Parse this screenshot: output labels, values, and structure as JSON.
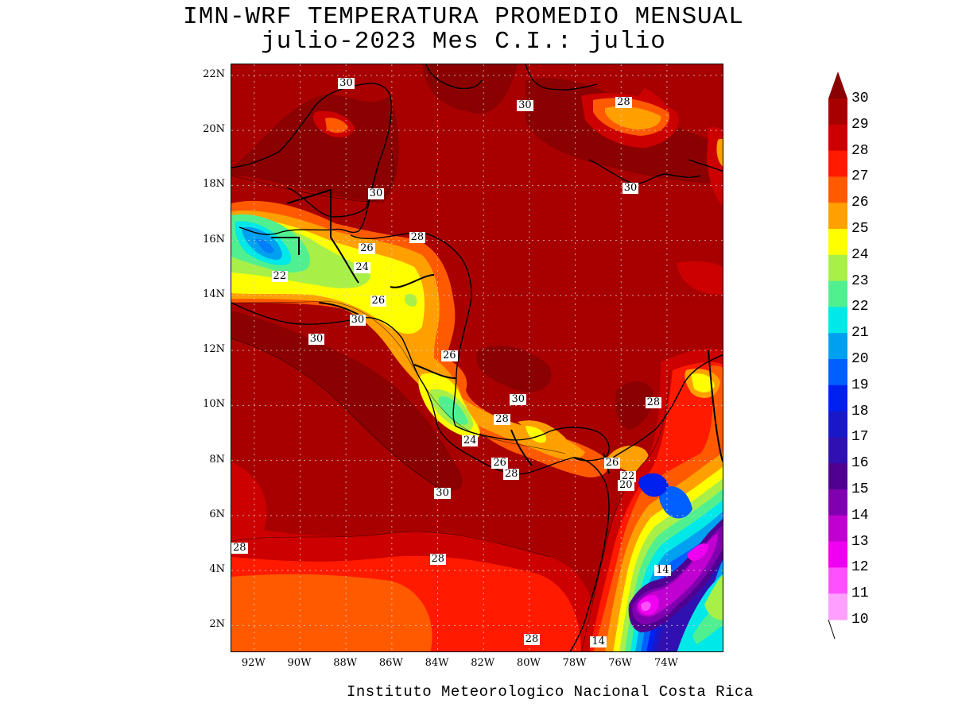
{
  "title": {
    "line1": "IMN-WRF  TEMPERATURA PROMEDIO MENSUAL",
    "line2": "julio-2023 Mes C.I.: julio"
  },
  "footer": "Instituto Meteorologico Nacional Costa Rica",
  "axes": {
    "lon_min": -93,
    "lon_max": -71.5,
    "lat_min": 1,
    "lat_max": 22.4,
    "y_ticks": [
      {
        "lat": 22,
        "label": "22N"
      },
      {
        "lat": 20,
        "label": "20N"
      },
      {
        "lat": 18,
        "label": "18N"
      },
      {
        "lat": 16,
        "label": "16N"
      },
      {
        "lat": 14,
        "label": "14N"
      },
      {
        "lat": 12,
        "label": "12N"
      },
      {
        "lat": 10,
        "label": "10N"
      },
      {
        "lat": 8,
        "label": "8N"
      },
      {
        "lat": 6,
        "label": "6N"
      },
      {
        "lat": 4,
        "label": "4N"
      },
      {
        "lat": 2,
        "label": "2N"
      }
    ],
    "x_ticks": [
      {
        "lon": -92,
        "label": "92W"
      },
      {
        "lon": -90,
        "label": "90W"
      },
      {
        "lon": -88,
        "label": "88W"
      },
      {
        "lon": -86,
        "label": "86W"
      },
      {
        "lon": -84,
        "label": "84W"
      },
      {
        "lon": -82,
        "label": "82W"
      },
      {
        "lon": -80,
        "label": "80W"
      },
      {
        "lon": -78,
        "label": "78W"
      },
      {
        "lon": -76,
        "label": "76W"
      },
      {
        "lon": -74,
        "label": "74W"
      }
    ]
  },
  "colorbar": {
    "levels": [
      "30",
      "29",
      "28",
      "27",
      "26",
      "25",
      "24",
      "23",
      "22",
      "21",
      "20",
      "19",
      "18",
      "17",
      "16",
      "15",
      "14",
      "13",
      "12",
      "11",
      "10"
    ],
    "colors": {
      "above_30": "#8b0000",
      "29-30": "#a80000",
      "28-29": "#cc0000",
      "27-28": "#ff1a00",
      "26-27": "#ff5a00",
      "25-26": "#ffa000",
      "24-25": "#ffff00",
      "23-24": "#a8f048",
      "22-23": "#50f090",
      "21-22": "#00e8e8",
      "20-21": "#00a0f0",
      "19-20": "#0060ff",
      "18-19": "#0020f0",
      "17-18": "#1818c8",
      "16-17": "#3010b0",
      "15-16": "#500090",
      "14-15": "#8000b0",
      "13-14": "#c000d0",
      "12-13": "#f000f0",
      "11-12": "#ff50ff",
      "10-11": "#ffa0ff"
    }
  },
  "contour_labels": [
    {
      "text": "30",
      "lon": -88.0,
      "lat": 21.7
    },
    {
      "text": "30",
      "lon": -80.2,
      "lat": 20.9
    },
    {
      "text": "28",
      "lon": -75.9,
      "lat": 21.0
    },
    {
      "text": "30",
      "lon": -86.7,
      "lat": 17.7
    },
    {
      "text": "30",
      "lon": -75.6,
      "lat": 17.9
    },
    {
      "text": "28",
      "lon": -84.9,
      "lat": 16.1
    },
    {
      "text": "26",
      "lon": -87.1,
      "lat": 15.7
    },
    {
      "text": "24",
      "lon": -87.3,
      "lat": 15.0
    },
    {
      "text": "22",
      "lon": -90.9,
      "lat": 14.7
    },
    {
      "text": "26",
      "lon": -86.6,
      "lat": 13.8
    },
    {
      "text": "30",
      "lon": -87.5,
      "lat": 13.1
    },
    {
      "text": "30",
      "lon": -89.3,
      "lat": 12.4
    },
    {
      "text": "26",
      "lon": -83.5,
      "lat": 11.8
    },
    {
      "text": "30",
      "lon": -80.5,
      "lat": 10.2
    },
    {
      "text": "28",
      "lon": -74.6,
      "lat": 10.1
    },
    {
      "text": "28",
      "lon": -81.2,
      "lat": 9.5
    },
    {
      "text": "24",
      "lon": -82.6,
      "lat": 8.7
    },
    {
      "text": "26",
      "lon": -81.3,
      "lat": 7.9
    },
    {
      "text": "28",
      "lon": -80.8,
      "lat": 7.5
    },
    {
      "text": "26",
      "lon": -76.4,
      "lat": 7.9
    },
    {
      "text": "22",
      "lon": -75.7,
      "lat": 7.4
    },
    {
      "text": "20",
      "lon": -75.8,
      "lat": 7.1
    },
    {
      "text": "30",
      "lon": -83.8,
      "lat": 6.8
    },
    {
      "text": "28",
      "lon": -92.9,
      "lat": 4.8
    },
    {
      "text": "28",
      "lon": -84.0,
      "lat": 4.4
    },
    {
      "text": "14",
      "lon": -74.2,
      "lat": 4.0
    },
    {
      "text": "28",
      "lon": -79.9,
      "lat": 1.5
    },
    {
      "text": "14",
      "lon": -77.0,
      "lat": 1.4
    }
  ]
}
